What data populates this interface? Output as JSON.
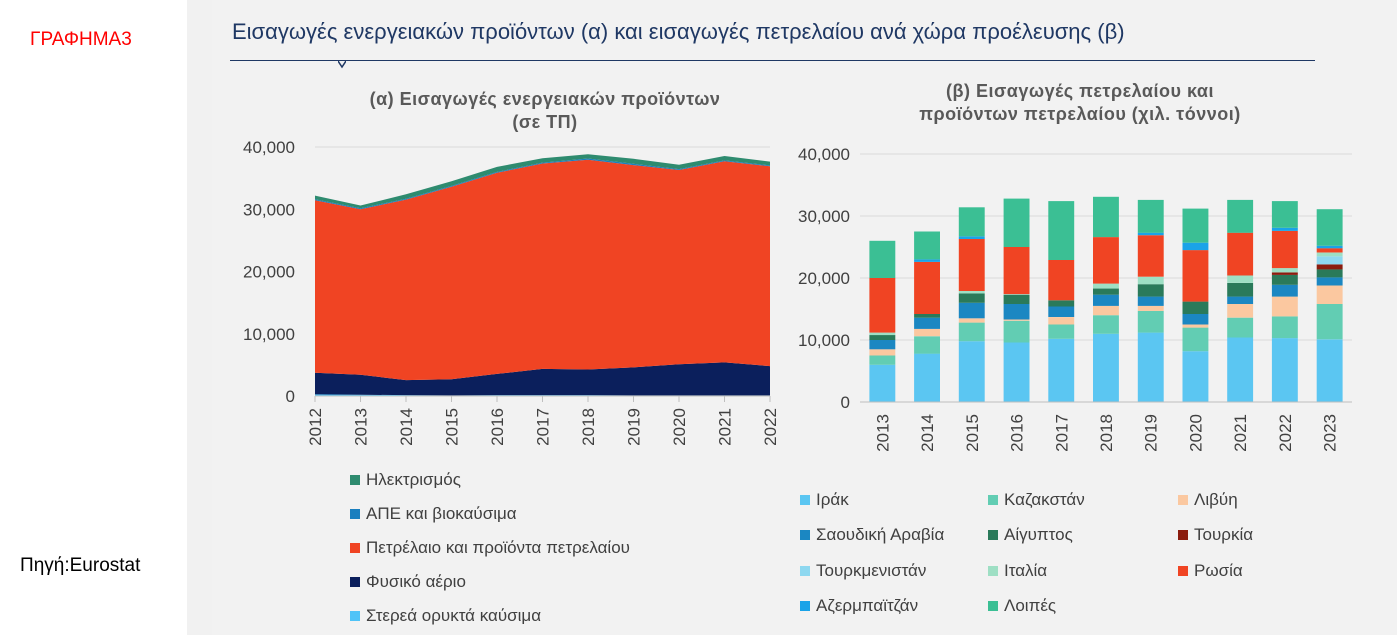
{
  "labels": {
    "chart_label": "ΓΡΑΦΗΜΑ3",
    "source": "Πηγή:Eurostat",
    "main_title": "Εισαγωγές ενεργειακών προϊόντων (α) και εισαγωγές πετρελαίου ανά χώρα προέλευσης (β)"
  },
  "chart_data": [
    {
      "type": "area",
      "title_line1": "(α) Εισαγωγές ενεργειακών προϊόντων",
      "title_line2": "(σε ΤΠ)",
      "ylim": [
        0,
        40000
      ],
      "yticks": [
        "0",
        "10,000",
        "20,000",
        "30,000",
        "40,000"
      ],
      "ytick_values": [
        0,
        10000,
        20000,
        30000,
        40000
      ],
      "x": [
        "2012",
        "2013",
        "2014",
        "2015",
        "2016",
        "2017",
        "2018",
        "2019",
        "2020",
        "2021",
        "2022"
      ],
      "series": [
        {
          "name": "Στερεά ορυκτά καύσιμα",
          "color": "#4fc3f7",
          "values": [
            250,
            200,
            150,
            100,
            150,
            150,
            150,
            100,
            100,
            100,
            100
          ]
        },
        {
          "name": "Φυσικό αέριο",
          "color": "#0b1f5c",
          "values": [
            3500,
            3200,
            2400,
            2600,
            3400,
            4200,
            4100,
            4500,
            5000,
            5300,
            4700
          ]
        },
        {
          "name": "Πετρέλαιο και προϊόντα πετρελαίου",
          "color": "#f04423",
          "values": [
            27700,
            26600,
            29000,
            30900,
            32300,
            33000,
            33700,
            32500,
            31200,
            32300,
            32100
          ]
        },
        {
          "name": "ΑΠΕ και βιοκαύσιμα",
          "color": "#1a7fbf",
          "values": [
            150,
            150,
            150,
            150,
            150,
            150,
            200,
            200,
            150,
            150,
            150
          ]
        },
        {
          "name": "Ηλεκτρισμός",
          "color": "#2e8b6f",
          "values": [
            600,
            450,
            700,
            750,
            800,
            700,
            700,
            800,
            700,
            700,
            600
          ]
        }
      ],
      "legend_order": [
        "Ηλεκτρισμός",
        "ΑΠΕ και βιοκαύσιμα",
        "Πετρέλαιο και προϊόντα πετρελαίου",
        "Φυσικό αέριο",
        "Στερεά ορυκτά καύσιμα"
      ]
    },
    {
      "type": "bar",
      "stacked": true,
      "title_line1": "(β) Εισαγωγές πετρελαίου και",
      "title_line2": "προϊόντων πετρελαίου (χιλ. τόννοι)",
      "ylim": [
        0,
        40000
      ],
      "yticks": [
        "0",
        "10,000",
        "20,000",
        "30,000",
        "40,000"
      ],
      "ytick_values": [
        0,
        10000,
        20000,
        30000,
        40000
      ],
      "categories": [
        "2013",
        "2014",
        "2015",
        "2016",
        "2017",
        "2018",
        "2019",
        "2020",
        "2021",
        "2022",
        "2023"
      ],
      "series": [
        {
          "name": "Ιράκ",
          "color": "#5bc6f2",
          "values": [
            6000,
            7800,
            9800,
            9600,
            10200,
            11000,
            11200,
            8200,
            10400,
            10300,
            10100
          ]
        },
        {
          "name": "Καζακστάν",
          "color": "#62cdb3",
          "values": [
            1500,
            2800,
            3000,
            3500,
            2300,
            3000,
            3500,
            3800,
            3200,
            3500,
            5700
          ]
        },
        {
          "name": "Λιβύη",
          "color": "#fbc8a0",
          "values": [
            1000,
            1200,
            700,
            200,
            1200,
            1500,
            800,
            500,
            2200,
            3200,
            3000
          ]
        },
        {
          "name": "Σαουδική Αραβία",
          "color": "#1b87c2",
          "values": [
            1500,
            1800,
            2500,
            2500,
            1700,
            1800,
            1500,
            1700,
            1200,
            1900,
            1300
          ]
        },
        {
          "name": "Αίγυπτος",
          "color": "#2a7a5a",
          "values": [
            800,
            600,
            1500,
            1500,
            1000,
            1000,
            2000,
            2000,
            2200,
            1600,
            1300
          ]
        },
        {
          "name": "Τουρκία",
          "color": "#8b1c0e",
          "values": [
            0,
            0,
            0,
            0,
            0,
            0,
            0,
            0,
            0,
            400,
            800
          ]
        },
        {
          "name": "Τουρκμενιστάν",
          "color": "#8ed8f0",
          "values": [
            0,
            0,
            0,
            0,
            0,
            0,
            0,
            0,
            0,
            0,
            1300
          ]
        },
        {
          "name": "Ιταλία",
          "color": "#9edfc4",
          "values": [
            400,
            0,
            400,
            100,
            0,
            800,
            1200,
            0,
            1200,
            700,
            600
          ]
        },
        {
          "name": "Ρωσία",
          "color": "#f04423",
          "values": [
            8800,
            8400,
            8400,
            7600,
            6500,
            7500,
            6700,
            8300,
            6900,
            6000,
            700
          ]
        },
        {
          "name": "Αζερμπαϊτζάν",
          "color": "#1aa3e8",
          "values": [
            0,
            400,
            400,
            0,
            0,
            0,
            400,
            1200,
            0,
            500,
            400
          ]
        },
        {
          "name": "Λοιπές",
          "color": "#3bbf94",
          "values": [
            6000,
            4500,
            4700,
            7800,
            9500,
            6500,
            5300,
            5500,
            5300,
            4300,
            5900
          ]
        }
      ]
    }
  ]
}
